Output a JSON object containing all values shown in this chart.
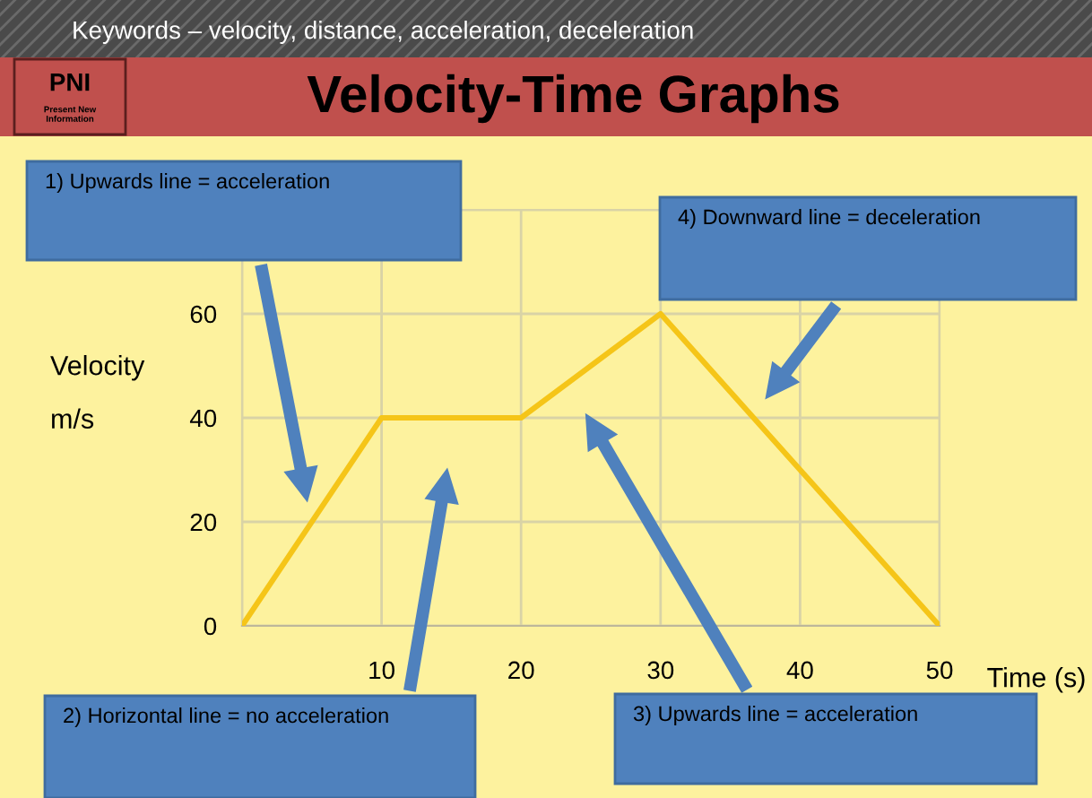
{
  "chart_data": {
    "type": "line",
    "title": "Velocity-Time Graphs",
    "subtitle": "Keywords – velocity, distance, acceleration, deceleration",
    "xlabel": "Time (s)",
    "ylabel": "Velocity\nm/s",
    "x": [
      0,
      10,
      20,
      30,
      50
    ],
    "series": [
      {
        "color": "#f5c518",
        "values": [
          0,
          40,
          40,
          60,
          0
        ]
      }
    ],
    "xlim": [
      0,
      50
    ],
    "ylim": [
      0,
      80
    ],
    "xticks": [
      {
        "value": 0,
        "label": null
      },
      10,
      20,
      30,
      40,
      50
    ],
    "yticks": [
      0,
      20,
      40,
      60,
      {
        "value": 80,
        "label": null
      }
    ],
    "grid": true,
    "marker": "none",
    "line_style": "solid",
    "annotations": [
      "PNI",
      "Present New\nInformation",
      "1) Upwards line = acceleration",
      "2) Horizontal line = no acceleration",
      "3) Upwards line = acceleration",
      "4) Downward line = deceleration"
    ]
  }
}
